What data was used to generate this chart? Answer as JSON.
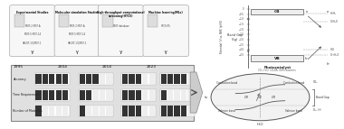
{
  "bg": "#ffffff",
  "timeline_years": [
    "1995",
    "2004",
    "2014",
    "2023"
  ],
  "timeline_labels": [
    "Experimental Studies",
    "Molecular simulation Studies",
    "High-throughput computational\nscreening(HTCS)",
    "Machine learning(MLs)"
  ],
  "timeline_sub": [
    [
      "MOF-2 MOF-A",
      "MOF-5 MOF-14",
      "HKUST-1/QMOF-1"
    ],
    [
      "MOF-2 MOF-A",
      "MOF-5 MOF-14",
      "HKUST-1/QMOF-1"
    ],
    [
      "MOF database"
    ],
    [
      "HTCS/ML"
    ]
  ],
  "row_labels": [
    "Accuracy",
    "Time Requirement",
    "Number of Materials"
  ],
  "accuracy_fills": [
    5,
    3,
    3,
    4
  ],
  "time_fills": [
    5,
    2,
    3,
    1
  ],
  "materials_fills": [
    1,
    1,
    3,
    4
  ],
  "block_color": "#333333",
  "block_empty": "#eeeeee",
  "max_blocks": 5,
  "cb_label": "CB",
  "vb_label": "VB",
  "band_gap_title": "Photocatalyst",
  "band_gap_subtitle": "CO₂, H₂O, CO₂RR, OER reactions",
  "ylabel_band": "Potential / V vs. NHE (pH 0)",
  "circle_bottom_label": "H₂O",
  "arrow_color": "#555555"
}
